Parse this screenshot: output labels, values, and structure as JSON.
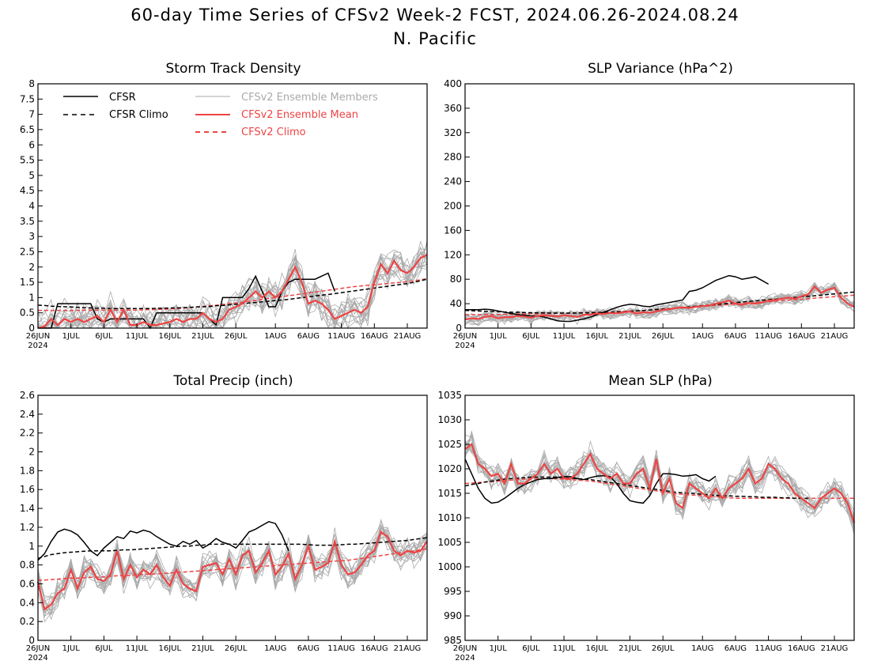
{
  "page": {
    "title": "60-day Time Series of CFSv2 Week-2 FCST, 2024.06.26-2024.08.24",
    "subtitle": "N. Pacific"
  },
  "colors": {
    "cfsr": "#000000",
    "ensemble_member": "#aaaaaa",
    "ensemble_mean": "#ee4444"
  },
  "legend": {
    "cfsr": "CFSR",
    "cfsr_climo": "CFSR Climo",
    "members": "CFSv2 Ensemble Members",
    "mean": "CFSv2 Ensemble Mean",
    "cfsv2_climo": "CFSv2 Climo"
  },
  "x_axis": {
    "ticks": [
      {
        "day": 0,
        "label": "26JUN"
      },
      {
        "day": 5,
        "label": "1JUL"
      },
      {
        "day": 10,
        "label": "6JUL"
      },
      {
        "day": 15,
        "label": "11JUL"
      },
      {
        "day": 20,
        "label": "16JUL"
      },
      {
        "day": 25,
        "label": "21JUL"
      },
      {
        "day": 30,
        "label": "26JUL"
      },
      {
        "day": 36,
        "label": "1AUG"
      },
      {
        "day": 41,
        "label": "6AUG"
      },
      {
        "day": 46,
        "label": "11AUG"
      },
      {
        "day": 51,
        "label": "16AUG"
      },
      {
        "day": 56,
        "label": "21AUG"
      }
    ],
    "year_label": "2024",
    "range_days": [
      0,
      59
    ]
  },
  "chart_data": [
    {
      "type": "line",
      "title": "Storm Track Density",
      "ylim": [
        0,
        8
      ],
      "yticks": [
        0,
        0.5,
        1,
        1.5,
        2,
        2.5,
        3,
        3.5,
        4,
        4.5,
        5,
        5.5,
        6,
        6.5,
        7,
        7.5,
        8
      ],
      "ensemble_spread": {
        "amplitude": 0.5,
        "min": 0
      },
      "series": {
        "cfsr": [
          0,
          0,
          0,
          0.8,
          0.8,
          0.8,
          0.8,
          0.8,
          0.8,
          0.3,
          0.2,
          0.3,
          0.3,
          0.3,
          0.3,
          0.3,
          0.3,
          0,
          0.5,
          0.5,
          0.5,
          0.5,
          0.5,
          0.5,
          0.5,
          0.5,
          0.3,
          0.1,
          1.0,
          1.0,
          1.0,
          1.0,
          1.3,
          1.7,
          1.2,
          0.7,
          0.7,
          1.2,
          1.5,
          1.6,
          1.6,
          1.6,
          1.6,
          1.7,
          1.8,
          1.2
        ],
        "cfsr_climo": [
          0.75,
          0.74,
          0.72,
          0.71,
          0.7,
          0.69,
          0.68,
          0.67,
          0.66,
          0.65,
          0.65,
          0.64,
          0.64,
          0.64,
          0.64,
          0.64,
          0.64,
          0.64,
          0.65,
          0.65,
          0.66,
          0.66,
          0.67,
          0.68,
          0.69,
          0.7,
          0.71,
          0.73,
          0.74,
          0.76,
          0.78,
          0.8,
          0.82,
          0.84,
          0.86,
          0.88,
          0.9,
          0.92,
          0.94,
          0.97,
          1.0,
          1.02,
          1.05,
          1.08,
          1.1,
          1.13,
          1.16,
          1.19,
          1.22,
          1.25,
          1.28,
          1.31,
          1.34,
          1.37,
          1.4,
          1.43,
          1.46,
          1.5,
          1.55,
          1.6
        ],
        "mean": [
          0,
          0.05,
          0.3,
          0.1,
          0.3,
          0.2,
          0.3,
          0.2,
          0.3,
          0.4,
          0.2,
          0.6,
          0.2,
          0.6,
          0.1,
          0.1,
          0.2,
          0.1,
          0.1,
          0.15,
          0.2,
          0.3,
          0.2,
          0.3,
          0.3,
          0.5,
          0.3,
          0.2,
          0.3,
          0.6,
          0.7,
          0.8,
          1.0,
          1.2,
          1.0,
          1.2,
          1.0,
          1.2,
          1.6,
          2.0,
          1.5,
          0.8,
          0.9,
          0.8,
          0.6,
          0.3,
          0.4,
          0.5,
          0.6,
          0.5,
          0.7,
          1.5,
          2.1,
          1.8,
          2.2,
          1.9,
          1.8,
          2.0,
          2.3,
          2.4
        ],
        "cfsv2_climo": [
          0.58,
          0.58,
          0.58,
          0.58,
          0.58,
          0.58,
          0.58,
          0.59,
          0.59,
          0.59,
          0.59,
          0.59,
          0.59,
          0.59,
          0.59,
          0.59,
          0.6,
          0.6,
          0.61,
          0.62,
          0.63,
          0.64,
          0.65,
          0.67,
          0.69,
          0.71,
          0.73,
          0.75,
          0.77,
          0.8,
          0.82,
          0.85,
          0.88,
          0.91,
          0.94,
          0.97,
          1.0,
          1.03,
          1.06,
          1.09,
          1.12,
          1.15,
          1.18,
          1.21,
          1.24,
          1.27,
          1.3,
          1.33,
          1.36,
          1.38,
          1.4,
          1.42,
          1.44,
          1.46,
          1.48,
          1.5,
          1.52,
          1.55,
          1.58,
          1.62
        ]
      }
    },
    {
      "type": "line",
      "title": "SLP Variance (hPa^2)",
      "ylim": [
        0,
        400
      ],
      "yticks": [
        0,
        40,
        80,
        120,
        160,
        200,
        240,
        280,
        320,
        360,
        400
      ],
      "ensemble_spread": {
        "amplitude": 9,
        "min": 0
      },
      "series": {
        "cfsr": [
          30,
          30,
          30,
          31,
          30,
          28,
          26,
          24,
          22,
          21,
          20,
          20,
          18,
          15,
          12,
          11,
          11,
          13,
          15,
          18,
          22,
          26,
          30,
          34,
          37,
          39,
          38,
          36,
          35,
          38,
          40,
          42,
          44,
          46,
          60,
          62,
          66,
          72,
          78,
          82,
          86,
          84,
          80,
          82,
          84,
          78,
          72
        ],
        "cfsr_climo": [
          29,
          28.5,
          28,
          27.6,
          27.2,
          26.8,
          26.4,
          26,
          25.7,
          25.4,
          25.2,
          25,
          24.8,
          24.7,
          24.6,
          24.6,
          24.6,
          24.7,
          24.8,
          25,
          25.3,
          25.6,
          26,
          26.5,
          27,
          27.6,
          28.2,
          28.9,
          29.6,
          30.4,
          31.2,
          32,
          32.9,
          33.8,
          34.7,
          35.7,
          36.7,
          37.7,
          38.7,
          39.7,
          40.7,
          41.7,
          42.7,
          43.7,
          44.7,
          45.7,
          46.6,
          47.5,
          48.4,
          49.3,
          50.2,
          51.1,
          52,
          53,
          54,
          55,
          56,
          57,
          58,
          59
        ],
        "mean": [
          14,
          16,
          15,
          18,
          20,
          16,
          18,
          18,
          20,
          19,
          17,
          20,
          21,
          20,
          19,
          21,
          20,
          18,
          22,
          22,
          24,
          23,
          25,
          24,
          26,
          27,
          24,
          26,
          25,
          27,
          30,
          31,
          33,
          34,
          33,
          35,
          36,
          37,
          40,
          42,
          45,
          40,
          38,
          41,
          40,
          42,
          45,
          46,
          48,
          50,
          48,
          52,
          55,
          68,
          58,
          63,
          66,
          50,
          40,
          35
        ],
        "cfsv2_climo": [
          22,
          22,
          22.1,
          22.2,
          22.3,
          22.4,
          22.6,
          22.8,
          23,
          23.2,
          23.4,
          23.6,
          23.8,
          24,
          24.2,
          24.4,
          24.6,
          24.8,
          25.1,
          25.4,
          25.7,
          26,
          26.4,
          26.8,
          27.3,
          27.8,
          28.3,
          28.9,
          29.5,
          30.1,
          30.8,
          31.5,
          32.2,
          33,
          33.8,
          34.6,
          35.4,
          36.2,
          37,
          37.8,
          38.6,
          39.4,
          40.2,
          41,
          41.8,
          42.6,
          43.4,
          44.2,
          45,
          45.8,
          46.6,
          47.4,
          48.2,
          49,
          49.8,
          50.6,
          51.4,
          52.2,
          53,
          54
        ]
      }
    },
    {
      "type": "line",
      "title": "Total Precip (inch)",
      "ylim": [
        0,
        2.6
      ],
      "yticks": [
        0,
        0.2,
        0.4,
        0.6,
        0.8,
        1,
        1.2,
        1.4,
        1.6,
        1.8,
        2,
        2.2,
        2.4,
        2.6
      ],
      "ensemble_spread": {
        "amplitude": 0.13,
        "min": 0
      },
      "series": {
        "cfsr": [
          0.85,
          0.92,
          1.05,
          1.15,
          1.18,
          1.16,
          1.12,
          1.04,
          0.95,
          0.9,
          0.98,
          1.04,
          1.1,
          1.08,
          1.16,
          1.14,
          1.17,
          1.15,
          1.1,
          1.06,
          1.02,
          1.0,
          1.05,
          1.02,
          1.06,
          0.98,
          1.02,
          1.08,
          1.04,
          1.02,
          0.98,
          1.06,
          1.15,
          1.18,
          1.22,
          1.26,
          1.24,
          1.12,
          0.95
        ],
        "cfsr_climo": [
          0.87,
          0.89,
          0.91,
          0.92,
          0.93,
          0.935,
          0.94,
          0.945,
          0.95,
          0.95,
          0.95,
          0.95,
          0.955,
          0.96,
          0.96,
          0.965,
          0.97,
          0.975,
          0.98,
          0.985,
          0.99,
          0.995,
          1.0,
          1.0,
          1.01,
          1.01,
          1.02,
          1.02,
          1.02,
          1.02,
          1.02,
          1.02,
          1.02,
          1.02,
          1.02,
          1.02,
          1.02,
          1.02,
          1.02,
          1.02,
          1.02,
          1.015,
          1.01,
          1.01,
          1.01,
          1.01,
          1.015,
          1.02,
          1.02,
          1.025,
          1.03,
          1.035,
          1.04,
          1.045,
          1.05,
          1.055,
          1.06,
          1.07,
          1.08,
          1.09
        ],
        "mean": [
          0.62,
          0.33,
          0.38,
          0.5,
          0.55,
          0.75,
          0.55,
          0.72,
          0.78,
          0.65,
          0.63,
          0.7,
          0.95,
          0.65,
          0.8,
          0.67,
          0.75,
          0.7,
          0.8,
          0.67,
          0.58,
          0.75,
          0.6,
          0.55,
          0.52,
          0.78,
          0.8,
          0.82,
          0.7,
          0.86,
          0.7,
          0.9,
          0.95,
          0.72,
          0.82,
          0.95,
          0.7,
          0.78,
          0.92,
          0.65,
          0.8,
          1.0,
          0.75,
          0.78,
          0.82,
          1.05,
          0.8,
          0.7,
          0.72,
          0.8,
          0.9,
          0.95,
          1.15,
          1.1,
          0.95,
          0.9,
          0.95,
          0.93,
          0.95,
          1.05
        ],
        "cfsv2_climo": [
          0.64,
          0.64,
          0.645,
          0.65,
          0.655,
          0.66,
          0.66,
          0.665,
          0.67,
          0.67,
          0.675,
          0.68,
          0.685,
          0.69,
          0.69,
          0.695,
          0.7,
          0.7,
          0.705,
          0.71,
          0.715,
          0.72,
          0.725,
          0.73,
          0.735,
          0.74,
          0.745,
          0.75,
          0.755,
          0.76,
          0.765,
          0.77,
          0.775,
          0.78,
          0.785,
          0.79,
          0.795,
          0.8,
          0.805,
          0.81,
          0.815,
          0.82,
          0.825,
          0.83,
          0.835,
          0.84,
          0.845,
          0.85,
          0.86,
          0.87,
          0.88,
          0.89,
          0.9,
          0.91,
          0.92,
          0.93,
          0.94,
          0.95,
          0.96,
          0.97
        ]
      }
    },
    {
      "type": "line",
      "title": "Mean SLP (hPa)",
      "ylim": [
        985,
        1035
      ],
      "yticks": [
        985,
        990,
        995,
        1000,
        1005,
        1010,
        1015,
        1020,
        1025,
        1030,
        1035
      ],
      "ensemble_spread": {
        "amplitude": 2.2,
        "min": 985
      },
      "series": {
        "cfsr": [
          1022,
          1019,
          1016,
          1014,
          1013,
          1013.2,
          1014,
          1015,
          1016,
          1016.8,
          1017.3,
          1017.8,
          1018,
          1018,
          1018.2,
          1018.4,
          1018.4,
          1018,
          1017.8,
          1018.2,
          1018.5,
          1018.6,
          1018.4,
          1017,
          1015,
          1013.5,
          1013.2,
          1013,
          1014.5,
          1017,
          1019,
          1019,
          1018.8,
          1018.5,
          1018.6,
          1018.8,
          1018,
          1017.5,
          1018.5
        ],
        "cfsr_climo": [
          1016.5,
          1016.8,
          1017,
          1017.3,
          1017.5,
          1017.7,
          1017.9,
          1018,
          1018.1,
          1018.2,
          1018.3,
          1018.3,
          1018.3,
          1018.3,
          1018.3,
          1018.2,
          1018.1,
          1018,
          1017.9,
          1017.8,
          1017.6,
          1017.4,
          1017.2,
          1017,
          1016.8,
          1016.6,
          1016.4,
          1016.2,
          1016,
          1015.8,
          1015.6,
          1015.4,
          1015.2,
          1015.1,
          1015,
          1014.9,
          1014.8,
          1014.7,
          1014.6,
          1014.5,
          1014.5,
          1014.4,
          1014.4,
          1014.3,
          1014.3,
          1014.2,
          1014.2,
          1014.2,
          1014.1,
          1014.1,
          1014,
          1014,
          1014
        ],
        "mean": [
          1024,
          1025,
          1021,
          1020,
          1018.5,
          1019,
          1017,
          1021,
          1017,
          1017,
          1018,
          1019,
          1021,
          1019,
          1020,
          1018,
          1018,
          1019,
          1021,
          1023,
          1020,
          1019,
          1018,
          1019,
          1017,
          1017,
          1019,
          1020,
          1016,
          1022,
          1015,
          1018,
          1013,
          1012,
          1017,
          1016,
          1015,
          1014,
          1016,
          1014,
          1016,
          1017,
          1018,
          1020,
          1017,
          1018,
          1021,
          1020,
          1018,
          1017,
          1015,
          1014,
          1013,
          1012,
          1014,
          1015,
          1016,
          1015,
          1013,
          1009
        ],
        "cfsv2_climo": [
          1017,
          1017.1,
          1017.2,
          1017.3,
          1017.4,
          1017.5,
          1017.6,
          1017.7,
          1017.8,
          1017.9,
          1017.9,
          1018,
          1018,
          1018,
          1018,
          1017.9,
          1017.8,
          1017.7,
          1017.6,
          1017.5,
          1017.3,
          1017.1,
          1016.9,
          1016.7,
          1016.5,
          1016.3,
          1016.1,
          1015.9,
          1015.7,
          1015.5,
          1015.3,
          1015.1,
          1014.9,
          1014.8,
          1014.7,
          1014.6,
          1014.5,
          1014.4,
          1014.3,
          1014.2,
          1014.1,
          1014,
          1014,
          1014,
          1014,
          1014,
          1014,
          1014,
          1014,
          1014,
          1014,
          1014,
          1014,
          1014,
          1014,
          1014,
          1014,
          1014,
          1014,
          1014
        ]
      }
    }
  ]
}
